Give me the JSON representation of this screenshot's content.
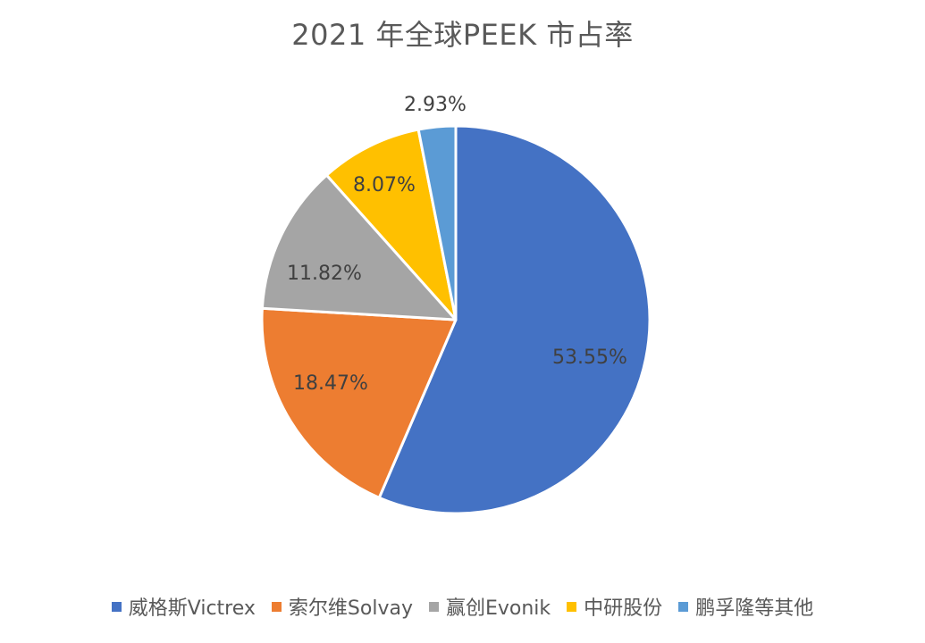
{
  "chart_data": {
    "type": "pie",
    "title": "2021 年全球PEEK 市占率",
    "categories": [
      "威格斯Victrex",
      "索尔维Solvay",
      "赢创Evonik",
      "中研股份",
      "鹏孚隆等其他"
    ],
    "values": [
      53.55,
      18.47,
      11.82,
      8.07,
      2.93
    ],
    "labels": [
      "53.55%",
      "18.47%",
      "11.82%",
      "8.07%",
      "2.93%"
    ],
    "colors": [
      "#4472C4",
      "#ED7D31",
      "#A5A5A5",
      "#FFC000",
      "#5B9BD5"
    ],
    "legend_position": "bottom",
    "start": "12 o'clock, clockwise"
  }
}
